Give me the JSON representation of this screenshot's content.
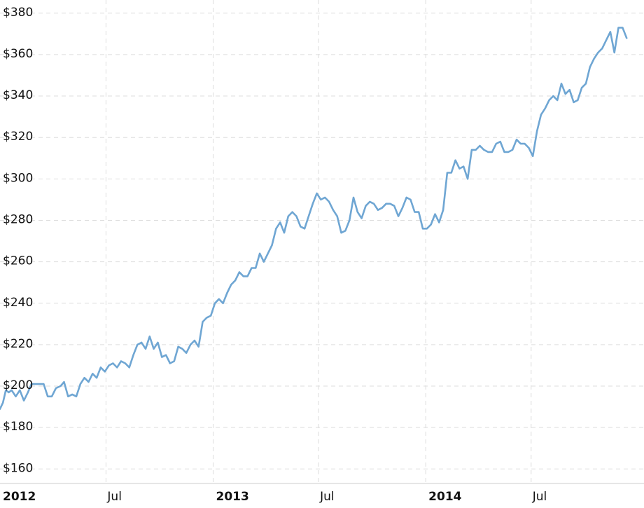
{
  "chart_data": {
    "type": "line",
    "title": "",
    "xlabel": "",
    "ylabel": "",
    "xlim": [
      "2012-01-01",
      "2014-12-31"
    ],
    "ylim": [
      153,
      385
    ],
    "grid": true,
    "legend": "none",
    "y_ticks": [
      {
        "value": 160,
        "label": "$160"
      },
      {
        "value": 180,
        "label": "$180"
      },
      {
        "value": 200,
        "label": "$200"
      },
      {
        "value": 220,
        "label": "$220"
      },
      {
        "value": 240,
        "label": "$240"
      },
      {
        "value": 260,
        "label": "$260"
      },
      {
        "value": 280,
        "label": "$280"
      },
      {
        "value": 300,
        "label": "$300"
      },
      {
        "value": 320,
        "label": "$320"
      },
      {
        "value": 340,
        "label": "$340"
      },
      {
        "value": 360,
        "label": "$360"
      },
      {
        "value": 380,
        "label": "$380"
      }
    ],
    "x_ticks": [
      {
        "date": "2012-01-01",
        "label": "2012",
        "major": true
      },
      {
        "date": "2012-07-01",
        "label": "Jul",
        "major": false
      },
      {
        "date": "2013-01-01",
        "label": "2013",
        "major": true
      },
      {
        "date": "2013-07-01",
        "label": "Jul",
        "major": false
      },
      {
        "date": "2014-01-01",
        "label": "2014",
        "major": true
      },
      {
        "date": "2014-07-01",
        "label": "Jul",
        "major": false
      }
    ],
    "series": [
      {
        "color": "#6fa6d3",
        "points": [
          [
            "2012-01-01",
            189
          ],
          [
            "2012-01-06",
            192
          ],
          [
            "2012-01-11",
            198
          ],
          [
            "2012-01-16",
            197
          ],
          [
            "2012-01-21",
            198
          ],
          [
            "2012-01-28",
            195
          ],
          [
            "2012-02-04",
            198
          ],
          [
            "2012-02-11",
            193
          ],
          [
            "2012-02-18",
            197
          ],
          [
            "2012-02-24",
            201
          ],
          [
            "2012-03-02",
            201
          ],
          [
            "2012-03-09",
            201
          ],
          [
            "2012-03-16",
            201
          ],
          [
            "2012-03-23",
            195
          ],
          [
            "2012-03-30",
            195
          ],
          [
            "2012-04-06",
            199
          ],
          [
            "2012-04-14",
            200
          ],
          [
            "2012-04-20",
            202
          ],
          [
            "2012-04-27",
            195
          ],
          [
            "2012-05-04",
            196
          ],
          [
            "2012-05-11",
            195
          ],
          [
            "2012-05-18",
            201
          ],
          [
            "2012-05-25",
            204
          ],
          [
            "2012-06-01",
            202
          ],
          [
            "2012-06-08",
            206
          ],
          [
            "2012-06-15",
            204
          ],
          [
            "2012-06-22",
            209
          ],
          [
            "2012-06-29",
            207
          ],
          [
            "2012-07-06",
            210
          ],
          [
            "2012-07-13",
            211
          ],
          [
            "2012-07-20",
            209
          ],
          [
            "2012-07-27",
            212
          ],
          [
            "2012-08-03",
            211
          ],
          [
            "2012-08-10",
            209
          ],
          [
            "2012-08-17",
            215
          ],
          [
            "2012-08-24",
            220
          ],
          [
            "2012-08-31",
            221
          ],
          [
            "2012-09-07",
            218
          ],
          [
            "2012-09-14",
            224
          ],
          [
            "2012-09-21",
            218
          ],
          [
            "2012-09-28",
            221
          ],
          [
            "2012-10-05",
            214
          ],
          [
            "2012-10-12",
            215
          ],
          [
            "2012-10-19",
            211
          ],
          [
            "2012-10-26",
            212
          ],
          [
            "2012-11-02",
            219
          ],
          [
            "2012-11-09",
            218
          ],
          [
            "2012-11-16",
            216
          ],
          [
            "2012-11-23",
            220
          ],
          [
            "2012-11-30",
            222
          ],
          [
            "2012-12-07",
            219
          ],
          [
            "2012-12-14",
            231
          ],
          [
            "2012-12-21",
            233
          ],
          [
            "2012-12-28",
            234
          ],
          [
            "2013-01-04",
            240
          ],
          [
            "2013-01-11",
            242
          ],
          [
            "2013-01-18",
            240
          ],
          [
            "2013-01-25",
            245
          ],
          [
            "2013-02-01",
            249
          ],
          [
            "2013-02-08",
            251
          ],
          [
            "2013-02-15",
            255
          ],
          [
            "2013-02-22",
            253
          ],
          [
            "2013-03-01",
            253
          ],
          [
            "2013-03-08",
            257
          ],
          [
            "2013-03-15",
            257
          ],
          [
            "2013-03-22",
            264
          ],
          [
            "2013-03-29",
            260
          ],
          [
            "2013-04-05",
            264
          ],
          [
            "2013-04-12",
            268
          ],
          [
            "2013-04-19",
            276
          ],
          [
            "2013-04-26",
            279
          ],
          [
            "2013-05-03",
            274
          ],
          [
            "2013-05-10",
            282
          ],
          [
            "2013-05-17",
            284
          ],
          [
            "2013-05-24",
            282
          ],
          [
            "2013-05-31",
            277
          ],
          [
            "2013-06-07",
            276
          ],
          [
            "2013-06-14",
            282
          ],
          [
            "2013-06-21",
            288
          ],
          [
            "2013-06-28",
            293
          ],
          [
            "2013-07-05",
            290
          ],
          [
            "2013-07-12",
            291
          ],
          [
            "2013-07-19",
            289
          ],
          [
            "2013-07-26",
            285
          ],
          [
            "2013-08-02",
            282
          ],
          [
            "2013-08-09",
            274
          ],
          [
            "2013-08-16",
            275
          ],
          [
            "2013-08-23",
            280
          ],
          [
            "2013-08-30",
            291
          ],
          [
            "2013-09-06",
            284
          ],
          [
            "2013-09-13",
            281
          ],
          [
            "2013-09-20",
            287
          ],
          [
            "2013-09-27",
            289
          ],
          [
            "2013-10-04",
            288
          ],
          [
            "2013-10-11",
            285
          ],
          [
            "2013-10-18",
            286
          ],
          [
            "2013-10-25",
            288
          ],
          [
            "2013-11-01",
            288
          ],
          [
            "2013-11-08",
            287
          ],
          [
            "2013-11-15",
            282
          ],
          [
            "2013-11-22",
            286
          ],
          [
            "2013-11-29",
            291
          ],
          [
            "2013-12-06",
            290
          ],
          [
            "2013-12-13",
            284
          ],
          [
            "2013-12-20",
            284
          ],
          [
            "2013-12-27",
            276
          ],
          [
            "2014-01-03",
            276
          ],
          [
            "2014-01-10",
            278
          ],
          [
            "2014-01-17",
            283
          ],
          [
            "2014-01-24",
            279
          ],
          [
            "2014-01-31",
            285
          ],
          [
            "2014-02-07",
            303
          ],
          [
            "2014-02-14",
            303
          ],
          [
            "2014-02-21",
            309
          ],
          [
            "2014-02-28",
            305
          ],
          [
            "2014-03-07",
            306
          ],
          [
            "2014-03-14",
            300
          ],
          [
            "2014-03-21",
            314
          ],
          [
            "2014-03-28",
            314
          ],
          [
            "2014-04-04",
            316
          ],
          [
            "2014-04-11",
            314
          ],
          [
            "2014-04-18",
            313
          ],
          [
            "2014-04-25",
            313
          ],
          [
            "2014-05-02",
            317
          ],
          [
            "2014-05-09",
            318
          ],
          [
            "2014-05-16",
            313
          ],
          [
            "2014-05-23",
            313
          ],
          [
            "2014-05-30",
            314
          ],
          [
            "2014-06-06",
            319
          ],
          [
            "2014-06-13",
            317
          ],
          [
            "2014-06-20",
            317
          ],
          [
            "2014-06-27",
            315
          ],
          [
            "2014-07-04",
            311
          ],
          [
            "2014-07-11",
            323
          ],
          [
            "2014-07-18",
            331
          ],
          [
            "2014-07-25",
            334
          ],
          [
            "2014-08-01",
            338
          ],
          [
            "2014-08-08",
            340
          ],
          [
            "2014-08-15",
            338
          ],
          [
            "2014-08-22",
            346
          ],
          [
            "2014-08-29",
            341
          ],
          [
            "2014-09-05",
            343
          ],
          [
            "2014-09-12",
            337
          ],
          [
            "2014-09-19",
            338
          ],
          [
            "2014-09-26",
            344
          ],
          [
            "2014-10-03",
            346
          ],
          [
            "2014-10-10",
            354
          ],
          [
            "2014-10-17",
            358
          ],
          [
            "2014-10-24",
            361
          ],
          [
            "2014-10-31",
            363
          ],
          [
            "2014-11-07",
            367
          ],
          [
            "2014-11-14",
            371
          ],
          [
            "2014-11-21",
            361
          ],
          [
            "2014-11-28",
            373
          ],
          [
            "2014-12-05",
            373
          ],
          [
            "2014-12-12",
            368
          ]
        ]
      }
    ]
  }
}
